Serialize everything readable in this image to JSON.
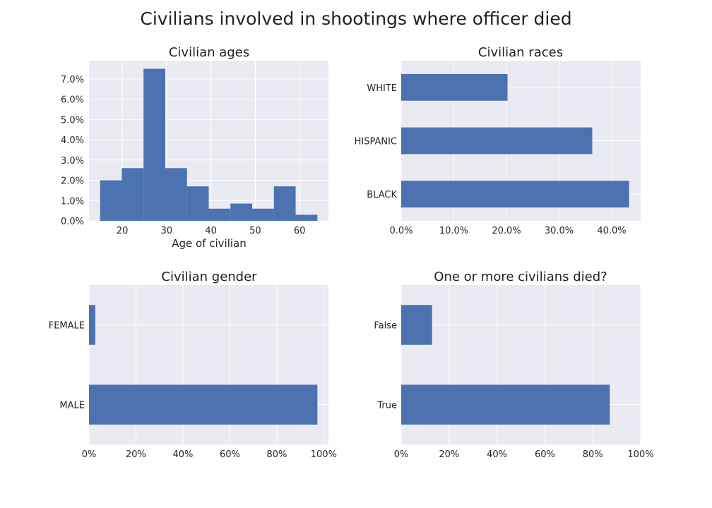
{
  "suptitle": "Civilians involved in shootings where officer died",
  "colors": {
    "bar": "#4c72b0",
    "background": "#eaeaf2",
    "grid": "#ffffff"
  },
  "chart_data": [
    {
      "id": "ages",
      "type": "bar",
      "subtype": "histogram",
      "title": "Civilian ages",
      "xlabel": "Age of civilian",
      "ylabel": "",
      "bin_edges": [
        15,
        19.9,
        24.8,
        29.7,
        34.6,
        39.5,
        44.4,
        49.3,
        54.2,
        59.1,
        64
      ],
      "values": [
        2.0,
        2.6,
        7.5,
        2.6,
        1.7,
        0.6,
        0.85,
        0.6,
        1.7,
        0.3
      ],
      "xlim": [
        12.5,
        66.5
      ],
      "ylim": [
        0,
        7.9
      ],
      "xticks": [
        20,
        30,
        40,
        50,
        60
      ],
      "xtick_labels": [
        "20",
        "30",
        "40",
        "50",
        "60"
      ],
      "yticks": [
        0,
        1,
        2,
        3,
        4,
        5,
        6,
        7
      ],
      "ytick_labels": [
        "0.0%",
        "1.0%",
        "2.0%",
        "3.0%",
        "4.0%",
        "5.0%",
        "6.0%",
        "7.0%"
      ],
      "grid": true
    },
    {
      "id": "races",
      "type": "bar",
      "orientation": "horizontal",
      "title": "Civilian races",
      "xlabel": "",
      "ylabel": "",
      "categories": [
        "BLACK",
        "HISPANIC",
        "WHITE"
      ],
      "values": [
        43.3,
        36.3,
        20.2
      ],
      "xlim": [
        0,
        45.5
      ],
      "xticks": [
        0,
        10,
        20,
        30,
        40
      ],
      "xtick_labels": [
        "0.0%",
        "10.0%",
        "20.0%",
        "30.0%",
        "40.0%"
      ],
      "grid": true
    },
    {
      "id": "gender",
      "type": "bar",
      "orientation": "horizontal",
      "title": "Civilian gender",
      "xlabel": "",
      "ylabel": "",
      "categories": [
        "MALE",
        "FEMALE"
      ],
      "values": [
        97.3,
        2.7
      ],
      "xlim": [
        0,
        102
      ],
      "xticks": [
        0,
        20,
        40,
        60,
        80,
        100
      ],
      "xtick_labels": [
        "0%",
        "20%",
        "40%",
        "60%",
        "80%",
        "100%"
      ],
      "grid": true
    },
    {
      "id": "died",
      "type": "bar",
      "orientation": "horizontal",
      "title": "One or more civilians died?",
      "xlabel": "",
      "ylabel": "",
      "categories": [
        "True",
        "False"
      ],
      "values": [
        87.1,
        12.9
      ],
      "xlim": [
        0,
        100
      ],
      "xticks": [
        0,
        20,
        40,
        60,
        80,
        100
      ],
      "xtick_labels": [
        "0%",
        "20%",
        "40%",
        "60%",
        "80%",
        "100%"
      ],
      "grid": true
    }
  ]
}
